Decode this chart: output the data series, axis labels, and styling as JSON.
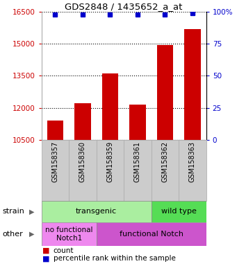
{
  "title": "GDS2848 / 1435652_a_at",
  "samples": [
    "GSM158357",
    "GSM158360",
    "GSM158359",
    "GSM158361",
    "GSM158362",
    "GSM158363"
  ],
  "counts": [
    11400,
    12200,
    13600,
    12150,
    14950,
    15680
  ],
  "percentiles": [
    98,
    98,
    98,
    98,
    98,
    99
  ],
  "ylim_left": [
    10500,
    16500
  ],
  "ylim_right": [
    0,
    100
  ],
  "yticks_left": [
    10500,
    12000,
    13500,
    15000,
    16500
  ],
  "yticks_right": [
    0,
    25,
    50,
    75,
    100
  ],
  "bar_color": "#cc0000",
  "dot_color": "#0000cc",
  "bar_width": 0.6,
  "tick_label_color_left": "#cc0000",
  "tick_label_color_right": "#0000cc",
  "background_color": "#ffffff",
  "strain_transgenic_color": "#aaeea0",
  "strain_wildtype_color": "#55dd55",
  "other_nofunc_color": "#ee88ee",
  "other_func_color": "#cc55cc",
  "xtick_box_color": "#cccccc",
  "legend_count_label": "count",
  "legend_pct_label": "percentile rank within the sample"
}
